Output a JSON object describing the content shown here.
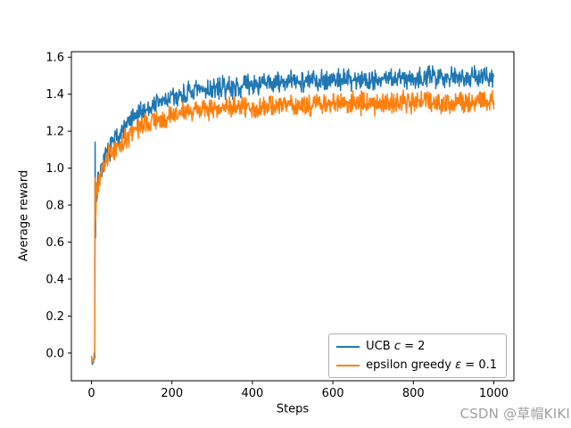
{
  "watermark": {
    "text": "CSDN @草帽KIKI"
  },
  "chart_data": {
    "type": "line",
    "title": "",
    "xlabel": "Steps",
    "ylabel": "Average reward",
    "xlim": [
      -50,
      1050
    ],
    "ylim": [
      -0.15,
      1.63
    ],
    "x_ticks": [
      0,
      200,
      400,
      600,
      800,
      1000
    ],
    "y_ticks": [
      0.0,
      0.2,
      0.4,
      0.6,
      0.8,
      1.0,
      1.2,
      1.4,
      1.6
    ],
    "grid": false,
    "legend_position": "lower right",
    "legend": [
      {
        "prefix": "UCB ",
        "var": "c",
        "suffix": " = 2"
      },
      {
        "prefix": "epsilon greedy ",
        "var": "ε",
        "suffix": " = 0.1"
      }
    ],
    "series": [
      {
        "name": "UCB c = 2",
        "color": "#1f77b4",
        "noise": 0.05,
        "seed": 7,
        "points": [
          [
            0,
            -0.02
          ],
          [
            2,
            -0.06
          ],
          [
            5,
            -0.04
          ],
          [
            8,
            -0.02
          ],
          [
            9,
            1.13
          ],
          [
            10,
            0.62
          ],
          [
            11,
            0.95
          ],
          [
            13,
            0.8
          ],
          [
            16,
            0.93
          ],
          [
            20,
            0.97
          ],
          [
            30,
            1.03
          ],
          [
            40,
            1.08
          ],
          [
            60,
            1.16
          ],
          [
            80,
            1.21
          ],
          [
            100,
            1.26
          ],
          [
            130,
            1.31
          ],
          [
            160,
            1.35
          ],
          [
            200,
            1.38
          ],
          [
            250,
            1.41
          ],
          [
            300,
            1.43
          ],
          [
            350,
            1.44
          ],
          [
            400,
            1.45
          ],
          [
            450,
            1.46
          ],
          [
            500,
            1.47
          ],
          [
            600,
            1.48
          ],
          [
            700,
            1.48
          ],
          [
            800,
            1.49
          ],
          [
            900,
            1.5
          ],
          [
            1000,
            1.49
          ]
        ]
      },
      {
        "name": "epsilon greedy ε = 0.1",
        "color": "#ff7f0e",
        "noise": 0.05,
        "seed": 3,
        "points": [
          [
            0,
            -0.01
          ],
          [
            2,
            -0.05
          ],
          [
            5,
            -0.03
          ],
          [
            8,
            0.0
          ],
          [
            9,
            0.95
          ],
          [
            10,
            0.7
          ],
          [
            12,
            0.86
          ],
          [
            16,
            0.9
          ],
          [
            20,
            0.94
          ],
          [
            30,
            1.0
          ],
          [
            40,
            1.05
          ],
          [
            60,
            1.11
          ],
          [
            80,
            1.15
          ],
          [
            100,
            1.19
          ],
          [
            130,
            1.23
          ],
          [
            160,
            1.26
          ],
          [
            200,
            1.29
          ],
          [
            250,
            1.31
          ],
          [
            300,
            1.32
          ],
          [
            350,
            1.33
          ],
          [
            400,
            1.33
          ],
          [
            500,
            1.34
          ],
          [
            600,
            1.35
          ],
          [
            700,
            1.35
          ],
          [
            800,
            1.36
          ],
          [
            900,
            1.35
          ],
          [
            1000,
            1.36
          ]
        ]
      }
    ]
  }
}
